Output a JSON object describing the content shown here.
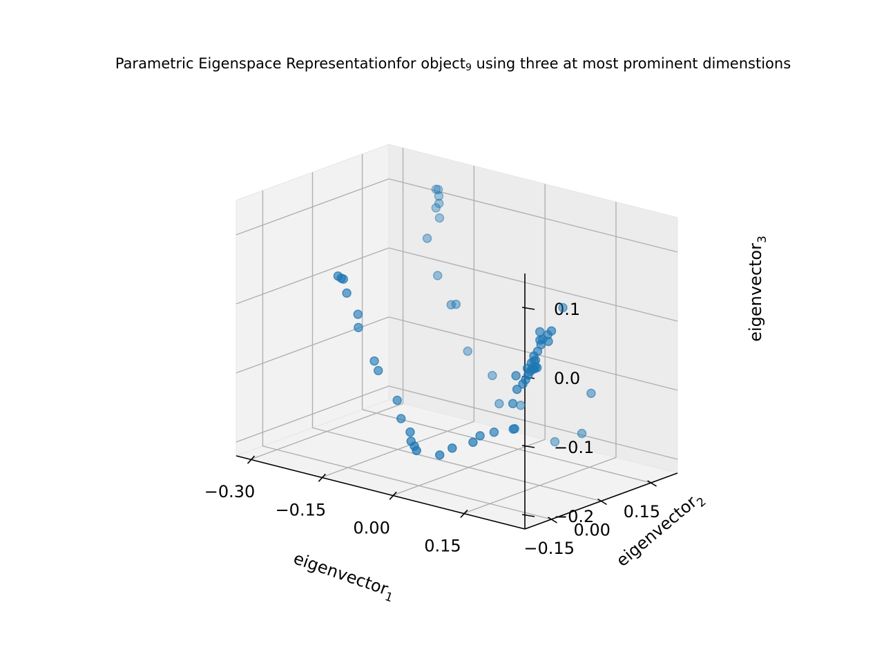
{
  "chart_data": {
    "type": "scatter",
    "title_parts": [
      "Parametric Eigenspace Representationfor object",
      "9",
      " using three at most prominent dimenstions"
    ],
    "xlabel": {
      "text": "eigenvector",
      "sub": "1"
    },
    "ylabel": {
      "text": "eigenvector",
      "sub": "2"
    },
    "zlabel": {
      "text": "eigenvector",
      "sub": "3"
    },
    "x_ticks": [
      -0.3,
      -0.15,
      0.0,
      0.15
    ],
    "x_tick_labels": [
      "−0.30",
      "−0.15",
      "0.00",
      "0.15"
    ],
    "y_ticks": [
      -0.15,
      0.0,
      0.15
    ],
    "y_tick_labels": [
      "−0.15",
      "0.00",
      "0.15"
    ],
    "z_ticks": [
      -0.2,
      -0.1,
      0.0,
      0.1
    ],
    "z_tick_labels": [
      "−0.2",
      "−0.1",
      "0.0",
      "0.1"
    ],
    "xlim": [
      -0.33,
      0.28
    ],
    "ylim": [
      -0.23,
      0.23
    ],
    "zlim": [
      -0.22,
      0.15
    ],
    "grid": true,
    "marker_color": "#1f77b4",
    "points": [
      [
        -0.246,
        -0.043,
        0.022
      ],
      [
        -0.239,
        -0.043,
        0.02
      ],
      [
        -0.236,
        -0.041,
        0.019
      ],
      [
        -0.231,
        -0.038,
        -0.001
      ],
      [
        -0.213,
        -0.03,
        -0.03
      ],
      [
        -0.21,
        -0.033,
        -0.048
      ],
      [
        -0.177,
        -0.032,
        -0.091
      ],
      [
        -0.163,
        -0.04,
        -0.101
      ],
      [
        -0.125,
        -0.037,
        -0.138
      ],
      [
        -0.112,
        -0.044,
        -0.161
      ],
      [
        -0.076,
        -0.068,
        -0.17
      ],
      [
        -0.067,
        -0.078,
        -0.18
      ],
      [
        -0.044,
        -0.101,
        -0.179
      ],
      [
        -0.031,
        -0.113,
        -0.181
      ],
      [
        0.011,
        -0.103,
        -0.182
      ],
      [
        0.036,
        -0.101,
        -0.168
      ],
      [
        0.075,
        -0.094,
        -0.154
      ],
      [
        0.071,
        -0.067,
        -0.15
      ],
      [
        0.088,
        -0.049,
        -0.145
      ],
      [
        0.111,
        -0.024,
        -0.141
      ],
      [
        0.111,
        -0.02,
        -0.141
      ],
      [
        0.113,
        -0.028,
        -0.103
      ],
      [
        0.14,
        -0.054,
        -0.073
      ],
      [
        0.155,
        -0.058,
        -0.062
      ],
      [
        0.158,
        -0.054,
        -0.056
      ],
      [
        0.167,
        -0.059,
        -0.047
      ],
      [
        0.13,
        -0.043,
        -0.057
      ],
      [
        0.159,
        -0.05,
        -0.04
      ],
      [
        0.166,
        -0.051,
        -0.043
      ],
      [
        0.168,
        -0.049,
        -0.04
      ],
      [
        0.17,
        -0.048,
        -0.038
      ],
      [
        0.172,
        -0.047,
        -0.039
      ],
      [
        0.173,
        -0.046,
        -0.036
      ],
      [
        0.176,
        -0.045,
        -0.037
      ],
      [
        0.162,
        -0.042,
        -0.033
      ],
      [
        0.166,
        -0.04,
        -0.03
      ],
      [
        0.17,
        -0.041,
        -0.028
      ],
      [
        0.163,
        -0.036,
        -0.024
      ],
      [
        0.168,
        -0.032,
        -0.017
      ],
      [
        0.178,
        -0.036,
        -0.005
      ],
      [
        0.173,
        -0.032,
        0.0
      ],
      [
        0.178,
        -0.031,
        0.002
      ],
      [
        0.168,
        -0.025,
        0.01
      ],
      [
        0.195,
        -0.038,
        0.003
      ],
      [
        0.188,
        -0.03,
        0.01
      ],
      [
        0.203,
        -0.04,
        0.02
      ],
      [
        0.171,
        0.04,
        0.034
      ],
      [
        0.218,
        0.058,
        -0.085
      ],
      [
        0.183,
        0.08,
        -0.153
      ],
      [
        0.114,
        0.097,
        -0.18
      ],
      [
        0.044,
        0.094,
        -0.139
      ],
      [
        0.002,
        0.089,
        -0.143
      ],
      [
        -0.032,
        0.117,
        -0.113
      ],
      [
        -0.089,
        0.124,
        -0.089
      ],
      [
        -0.101,
        0.106,
        -0.02
      ],
      [
        -0.115,
        0.111,
        -0.024
      ],
      [
        -0.149,
        0.119,
        0.011
      ],
      [
        -0.176,
        0.126,
        0.059
      ],
      [
        -0.164,
        0.146,
        0.087
      ],
      [
        -0.177,
        0.154,
        0.098
      ],
      [
        -0.172,
        0.156,
        0.105
      ],
      [
        -0.178,
        0.164,
        0.113
      ],
      [
        -0.186,
        0.167,
        0.121
      ],
      [
        -0.18,
        0.165,
        0.122
      ]
    ]
  }
}
